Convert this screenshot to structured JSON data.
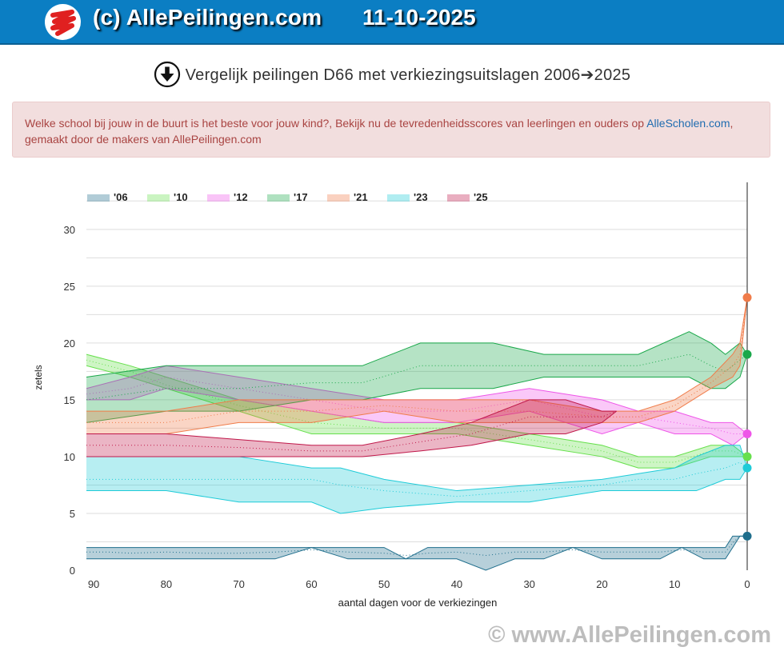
{
  "header": {
    "title": "(c) AllePeilingen.com",
    "date": "11-10-2025",
    "logo_icon": "red-scribble-logo-icon"
  },
  "heading": {
    "icon": "download-circle-icon",
    "text": "Vergelijk peilingen D66 met verkiezingsuitslagen 2006➔2025"
  },
  "alert": {
    "text_before": "Welke school bij jouw in de buurt is het beste voor jouw kind?, Bekijk nu de tevredenheidsscores van leerlingen en ouders op ",
    "link_text": "AlleScholen.com",
    "text_after": ", gemaakt door de makers van AllePeilingen.com"
  },
  "footer": {
    "watermark": "© www.AllePeilingen.com"
  },
  "chart_data": {
    "type": "area",
    "title": "Vergelijk peilingen D66 met verkiezingsuitslagen 2006➔2025",
    "xlabel": "aantal dagen voor de verkiezingen",
    "ylabel": "zetels",
    "xlim": [
      91,
      0
    ],
    "ylim": [
      0,
      34
    ],
    "x_ticks": [
      90,
      80,
      70,
      60,
      50,
      40,
      30,
      20,
      10,
      0
    ],
    "y_ticks": [
      0,
      5,
      10,
      15,
      20,
      25,
      30
    ],
    "grid": true,
    "legend_position": "top-left",
    "series": [
      {
        "name": "'06",
        "color": "#1f6e8c",
        "result": 3,
        "x": [
          91,
          88,
          85,
          80,
          75,
          70,
          65,
          60,
          55,
          50,
          47,
          44,
          40,
          36,
          32,
          28,
          24,
          20,
          16,
          12,
          9,
          6,
          3,
          2,
          1,
          0
        ],
        "low": [
          1,
          1,
          1,
          1,
          1,
          1,
          1,
          2,
          1,
          1,
          1,
          1,
          1,
          0,
          1,
          1,
          2,
          1,
          1,
          1,
          2,
          1,
          1,
          2,
          3,
          3
        ],
        "high": [
          2,
          2,
          2,
          2,
          2,
          2,
          2,
          2,
          2,
          2,
          1,
          2,
          2,
          2,
          2,
          2,
          2,
          2,
          2,
          2,
          2,
          2,
          2,
          3,
          3,
          3
        ],
        "avg": [
          1.6,
          1.6,
          1.5,
          1.6,
          1.5,
          1.5,
          1.6,
          1.8,
          1.6,
          1.5,
          1.3,
          1.5,
          1.6,
          1.3,
          1.6,
          1.6,
          1.8,
          1.6,
          1.6,
          1.6,
          1.8,
          1.6,
          1.6,
          2.4,
          3,
          3
        ]
      },
      {
        "name": "'10",
        "color": "#66e04c",
        "result": 10,
        "x": [
          91,
          85,
          80,
          75,
          70,
          60,
          50,
          40,
          30,
          20,
          15,
          10,
          5,
          2,
          0
        ],
        "low": [
          18,
          17,
          16,
          15,
          14,
          12,
          12,
          12,
          11,
          10,
          9,
          9,
          10,
          10,
          10
        ],
        "high": [
          19,
          18,
          17,
          16,
          15,
          14,
          13,
          13,
          12,
          11,
          10,
          10,
          11,
          11,
          10
        ],
        "avg": [
          18.5,
          17.5,
          16.3,
          15.5,
          14.5,
          13,
          12.5,
          12.5,
          11.5,
          10.5,
          9.5,
          9.5,
          10.5,
          10.5,
          10
        ]
      },
      {
        "name": "'12",
        "color": "#ee55e8",
        "result": 12,
        "x": [
          91,
          85,
          80,
          70,
          60,
          50,
          40,
          30,
          20,
          15,
          10,
          5,
          2,
          0
        ],
        "low": [
          15,
          15,
          16,
          15,
          14,
          13,
          13,
          14,
          12,
          13,
          12,
          12,
          11,
          12
        ],
        "high": [
          16,
          17,
          18,
          17,
          16,
          15,
          15,
          16,
          15,
          14,
          14,
          13,
          13,
          12
        ],
        "avg": [
          15.5,
          16,
          17,
          16,
          15,
          14,
          14,
          15,
          13.5,
          13.5,
          13,
          12.5,
          12,
          12
        ]
      },
      {
        "name": "'17",
        "color": "#1aa84a",
        "result": 19,
        "x": [
          91,
          80,
          70,
          60,
          53,
          45,
          35,
          28,
          25,
          20,
          15,
          8,
          5,
          3,
          1,
          0
        ],
        "low": [
          13,
          14,
          14,
          15,
          15,
          16,
          16,
          17,
          17,
          17,
          17,
          17,
          16,
          16,
          17,
          19
        ],
        "high": [
          17,
          18,
          18,
          18,
          18,
          20,
          20,
          19,
          19,
          19,
          19,
          21,
          20,
          19,
          20,
          19
        ],
        "avg": [
          15,
          16,
          16,
          16.5,
          16.5,
          18,
          18,
          18,
          18,
          18,
          18,
          19,
          18,
          17.5,
          18.5,
          19
        ]
      },
      {
        "name": "'21",
        "color": "#f07c4a",
        "result": 24,
        "x": [
          91,
          80,
          70,
          60,
          50,
          40,
          30,
          20,
          15,
          10,
          5,
          2,
          1,
          0
        ],
        "low": [
          12,
          12,
          13,
          13,
          14,
          13,
          13,
          13,
          13,
          14,
          16,
          17,
          18,
          24
        ],
        "high": [
          14,
          14,
          15,
          15,
          15,
          15,
          15,
          14,
          14,
          15,
          17,
          19,
          20,
          24
        ],
        "avg": [
          13,
          13,
          14,
          14,
          14.5,
          14,
          14,
          13.5,
          13.5,
          14.5,
          16.5,
          18,
          19,
          24
        ]
      },
      {
        "name": "'23",
        "color": "#1ecbd8",
        "result": 9,
        "x": [
          91,
          80,
          70,
          60,
          56,
          50,
          40,
          30,
          20,
          15,
          10,
          7,
          3,
          1,
          0
        ],
        "low": [
          7,
          7,
          6,
          6,
          5,
          5.5,
          6,
          6,
          7,
          7,
          7,
          7,
          8,
          8,
          9
        ],
        "high": [
          10,
          10,
          10,
          9,
          9,
          8,
          7,
          7.5,
          8,
          8.5,
          9,
          10,
          11,
          11,
          9
        ],
        "avg": [
          8,
          8,
          8,
          8,
          7.5,
          7,
          6.5,
          7,
          7.5,
          8,
          8,
          8.5,
          9,
          9.5,
          9
        ]
      },
      {
        "name": "'25",
        "color": "#c0184a",
        "result": null,
        "x": [
          91,
          80,
          70,
          60,
          53,
          45,
          38,
          30,
          25,
          20,
          18
        ],
        "low": [
          10,
          10,
          10,
          10,
          10,
          10.5,
          11,
          12,
          12,
          13,
          14
        ],
        "high": [
          12,
          12,
          11.5,
          11,
          11,
          12,
          13,
          15,
          15,
          14,
          14
        ],
        "avg": [
          11,
          11,
          10.8,
          10.5,
          10.5,
          11.3,
          12,
          13.5,
          13.5,
          13.5,
          14
        ]
      }
    ]
  }
}
